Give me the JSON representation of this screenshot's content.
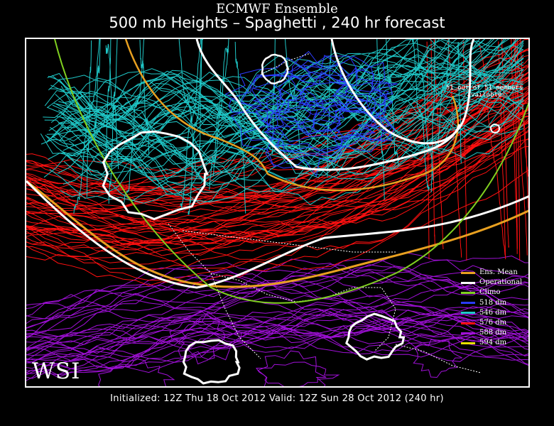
{
  "header": {
    "title": "ECMWF Ensemble",
    "subtitle": "500 mb Heights – Spaghetti , 240 hr forecast"
  },
  "map": {
    "members_note": "51 out of 51 members available",
    "logo_text": "WSI",
    "colors": {
      "c518": "#2b3bff",
      "c546": "#1fc8c8",
      "c576": "#ff1010",
      "c588": "#a010d8",
      "c594": "#e8e000",
      "ens_mean": "#e8a020",
      "operational": "#ffffff",
      "climo": "#80d020"
    }
  },
  "legend": {
    "items": [
      {
        "label": "Ens. Mean",
        "color": "#e8a020"
      },
      {
        "label": "Operational",
        "color": "#ffffff"
      },
      {
        "label": "Climo",
        "color": "#80d020"
      },
      {
        "label": "518 dm",
        "color": "#2b3bff"
      },
      {
        "label": "546 dm",
        "color": "#1fc8c8"
      },
      {
        "label": "576 dm",
        "color": "#ff1010"
      },
      {
        "label": "588 dm",
        "color": "#a010d8"
      },
      {
        "label": "594 dm",
        "color": "#e8e000"
      }
    ]
  },
  "footer": {
    "text": "Initialized: 12Z Thu 18 Oct 2012   Valid: 12Z Sun 28 Oct 2012 (240 hr)"
  }
}
